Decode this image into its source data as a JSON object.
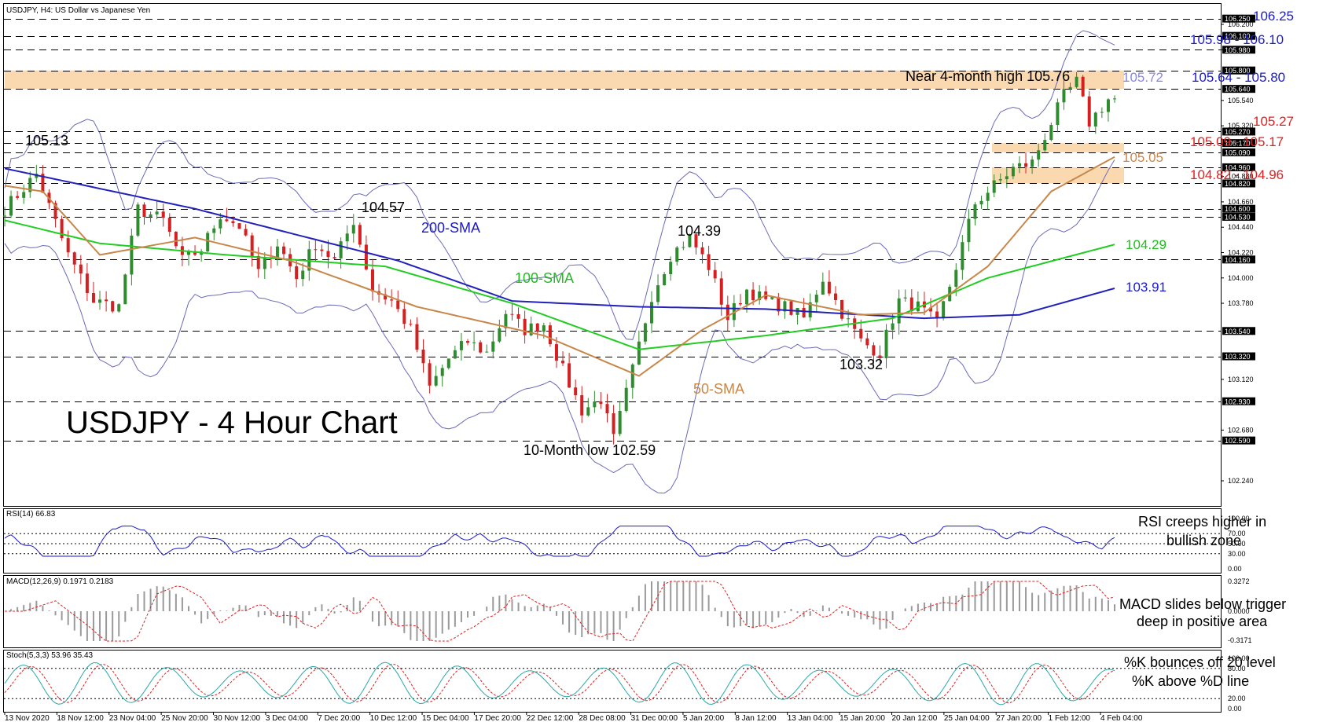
{
  "header": {
    "symbol_label": "USDJPY, H4:  US Dollar vs Japanese Yen"
  },
  "main_title": "USDJPY - 4 Hour Chart",
  "colors": {
    "bull_candle": "#2e8b2e",
    "bear_candle": "#d42020",
    "sma50": "#c8874a",
    "sma100": "#22cc22",
    "sma200": "#2222bb",
    "bollinger": "#6a6ab8",
    "zone_fill": "#fbd9b0",
    "level_blue": "#1a1acc",
    "level_red": "#e02020",
    "level_green": "#22bb22",
    "level_orange": "#c8874a",
    "level_lavender": "#8888dd"
  },
  "annotations": {
    "high_4m": "Near 4-month high 105.76",
    "low_10m": "10-Month low 102.59",
    "p10513": "105.13",
    "p10457": "104.57",
    "p10439": "104.39",
    "p10332": "103.32",
    "sma200": "200-SMA",
    "sma100": "100-SMA",
    "sma50": "50-SMA"
  },
  "levels": {
    "l10625": "106.25",
    "l10598": "105.98 - 106.10",
    "l10572": "105.72",
    "l10564": "105.64 - 105.80",
    "l10527": "105.27",
    "l10509": "105.09 - 105.17",
    "l10505": "105.05",
    "l10482": "104.82 - 104.96",
    "l10429": "104.29",
    "l10391": "103.91"
  },
  "price_axis": {
    "ticks": [
      "106.200",
      "105.980",
      "105.540",
      "105.320",
      "104.880",
      "104.660",
      "104.440",
      "104.220",
      "104.000",
      "103.780",
      "103.120",
      "102.680",
      "102.240"
    ],
    "tags": [
      "106.250",
      "106.100",
      "105.980",
      "105.800",
      "105.640",
      "105.270",
      "105.170",
      "105.090",
      "104.960",
      "104.820",
      "104.600",
      "104.530",
      "104.160",
      "103.540",
      "103.320",
      "102.930",
      "102.590"
    ]
  },
  "date_axis": [
    "13 Nov 2020",
    "18 Nov 12:00",
    "23 Nov 04:00",
    "25 Nov 20:00",
    "30 Nov 12:00",
    "3 Dec 04:00",
    "7 Dec 20:00",
    "10 Dec 12:00",
    "15 Dec 04:00",
    "17 Dec 20:00",
    "22 Dec 12:00",
    "28 Dec 08:00",
    "31 Dec 00:00",
    "5 Jan 20:00",
    "8 Jan 12:00",
    "13 Jan 04:00",
    "15 Jan 20:00",
    "20 Jan 12:00",
    "25 Jan 04:00",
    "27 Jan 20:00",
    "1 Feb 12:00",
    "4 Feb 04:00"
  ],
  "rsi": {
    "label": "RSI(14) 66.83",
    "ticks": [
      "100.00",
      "70.00",
      "50.00",
      "30.00",
      "0.00"
    ],
    "comment_line1": "RSI creeps higher in",
    "comment_line2": "bullish zone"
  },
  "macd": {
    "label": "MACD(12,26,9) 0.1971 0.2183",
    "ticks": [
      "0.3272",
      "0.0000",
      "-0.3171"
    ],
    "comment_line1": "MACD slides below trigger",
    "comment_line2": "deep in positive area"
  },
  "stoch": {
    "label": "Stoch(5,3,3) 53.96 35.43",
    "ticks": [
      "100.00",
      "80.00",
      "20.00",
      "0.00"
    ],
    "comment_line1": "%K bounces off 20 level",
    "comment_line2": "%K above %D line"
  },
  "chart_data": {
    "type": "candlestick",
    "title": "USDJPY - 4 Hour Chart",
    "ylim": [
      102.1,
      106.3
    ],
    "support_resistance_levels": [
      106.25,
      106.1,
      105.98,
      105.8,
      105.64,
      105.27,
      105.17,
      105.09,
      104.96,
      104.82,
      104.6,
      104.53,
      104.16,
      103.54,
      103.32,
      102.93,
      102.59
    ],
    "zones": [
      [
        105.64,
        105.8
      ],
      [
        105.09,
        105.17
      ],
      [
        104.82,
        104.96
      ]
    ],
    "close_path": [
      [
        0,
        104.6
      ],
      [
        5,
        104.9
      ],
      [
        10,
        104.2
      ],
      [
        14,
        103.8
      ],
      [
        18,
        103.75
      ],
      [
        21,
        104.6
      ],
      [
        25,
        104.5
      ],
      [
        28,
        104.15
      ],
      [
        31,
        104.25
      ],
      [
        34,
        104.55
      ],
      [
        37,
        104.45
      ],
      [
        40,
        104.05
      ],
      [
        43,
        104.3
      ],
      [
        46,
        104.0
      ],
      [
        49,
        104.3
      ],
      [
        52,
        104.15
      ],
      [
        55,
        104.5
      ],
      [
        58,
        103.9
      ],
      [
        61,
        103.8
      ],
      [
        64,
        103.55
      ],
      [
        67,
        103.05
      ],
      [
        70,
        103.3
      ],
      [
        73,
        103.45
      ],
      [
        76,
        103.35
      ],
      [
        79,
        103.7
      ],
      [
        82,
        103.55
      ],
      [
        85,
        103.6
      ],
      [
        88,
        103.2
      ],
      [
        91,
        102.85
      ],
      [
        94,
        102.95
      ],
      [
        96,
        102.6
      ],
      [
        99,
        103.2
      ],
      [
        102,
        103.85
      ],
      [
        105,
        104.2
      ],
      [
        108,
        104.35
      ],
      [
        111,
        104.1
      ],
      [
        114,
        103.65
      ],
      [
        117,
        103.9
      ],
      [
        120,
        103.8
      ],
      [
        123,
        103.75
      ],
      [
        126,
        103.65
      ],
      [
        129,
        104.0
      ],
      [
        132,
        103.7
      ],
      [
        135,
        103.45
      ],
      [
        138,
        103.35
      ],
      [
        141,
        103.8
      ],
      [
        144,
        103.75
      ],
      [
        147,
        103.6
      ],
      [
        150,
        104.1
      ],
      [
        153,
        104.65
      ],
      [
        156,
        104.8
      ],
      [
        159,
        104.95
      ],
      [
        162,
        105.0
      ],
      [
        165,
        105.35
      ],
      [
        167,
        105.58
      ],
      [
        169,
        105.7
      ],
      [
        171,
        105.35
      ],
      [
        174,
        105.55
      ]
    ],
    "series": [
      {
        "name": "200-SMA",
        "values": [
          [
            0,
            104.95
          ],
          [
            30,
            104.6
          ],
          [
            62,
            104.15
          ],
          [
            80,
            103.8
          ],
          [
            100,
            103.75
          ],
          [
            120,
            103.73
          ],
          [
            145,
            103.65
          ],
          [
            160,
            103.68
          ],
          [
            175,
            103.91
          ]
        ]
      },
      {
        "name": "100-SMA",
        "values": [
          [
            0,
            104.5
          ],
          [
            15,
            104.3
          ],
          [
            35,
            104.2
          ],
          [
            60,
            104.1
          ],
          [
            80,
            103.78
          ],
          [
            100,
            103.38
          ],
          [
            120,
            103.5
          ],
          [
            140,
            103.65
          ],
          [
            155,
            104.0
          ],
          [
            175,
            104.29
          ]
        ]
      },
      {
        "name": "50-SMA",
        "values": [
          [
            0,
            104.8
          ],
          [
            6,
            104.75
          ],
          [
            15,
            104.2
          ],
          [
            30,
            104.35
          ],
          [
            45,
            104.15
          ],
          [
            65,
            103.75
          ],
          [
            85,
            103.5
          ],
          [
            100,
            103.15
          ],
          [
            110,
            103.55
          ],
          [
            120,
            103.85
          ],
          [
            135,
            103.68
          ],
          [
            145,
            103.7
          ],
          [
            155,
            104.1
          ],
          [
            165,
            104.75
          ],
          [
            175,
            105.05
          ]
        ]
      }
    ]
  }
}
